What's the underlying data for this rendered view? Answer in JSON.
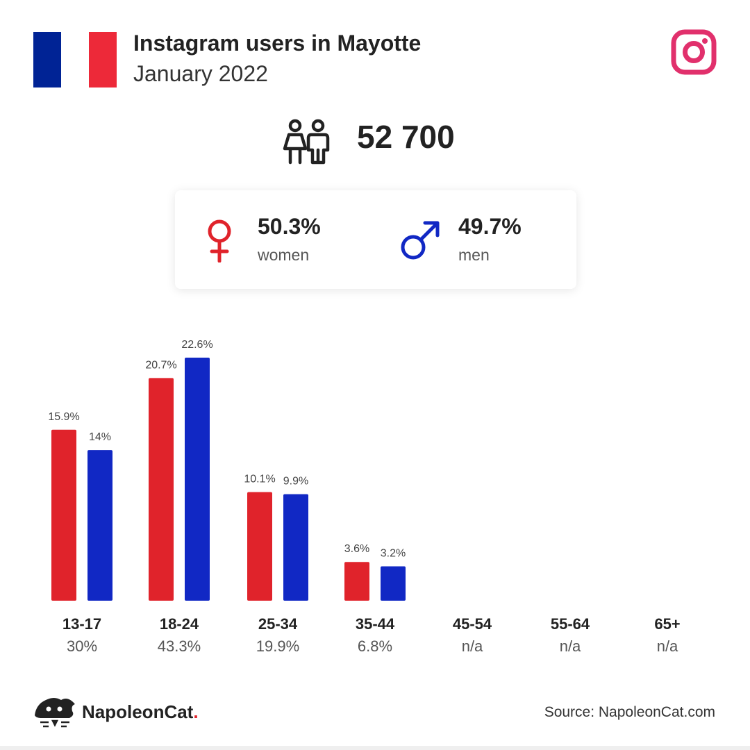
{
  "header": {
    "title": "Instagram users in Mayotte",
    "subtitle": "January 2022"
  },
  "flag_colors": [
    "#002395",
    "#ffffff",
    "#ed2939"
  ],
  "icons": {
    "flag": "france-flag-icon",
    "brand": "instagram-icon",
    "total": "people-icon",
    "women": "venus-icon",
    "men": "mars-icon",
    "footer_logo": "napoleoncat-logo-icon"
  },
  "total": {
    "value": "52 700"
  },
  "gender": {
    "women": {
      "pct": "50.3%",
      "label": "women",
      "color": "#e0232b"
    },
    "men": {
      "pct": "49.7%",
      "label": "men",
      "color": "#1128c4"
    }
  },
  "chart_data": {
    "type": "bar",
    "categories": [
      "13-17",
      "18-24",
      "25-34",
      "35-44",
      "45-54",
      "55-64",
      "65+"
    ],
    "category_totals": [
      "30%",
      "43.3%",
      "19.9%",
      "6.8%",
      "n/a",
      "n/a",
      "n/a"
    ],
    "series": [
      {
        "name": "women",
        "color": "#e0232b",
        "values": [
          15.9,
          20.7,
          10.1,
          3.6,
          null,
          null,
          null
        ],
        "labels": [
          "15.9%",
          "20.7%",
          "10.1%",
          "3.6%",
          "",
          "",
          ""
        ]
      },
      {
        "name": "men",
        "color": "#1128c4",
        "values": [
          14,
          22.6,
          9.9,
          3.2,
          null,
          null,
          null
        ],
        "labels": [
          "14%",
          "22.6%",
          "9.9%",
          "3.2%",
          "",
          "",
          ""
        ]
      }
    ],
    "ylim": [
      0,
      22.6
    ],
    "grid": false,
    "legend": "none"
  },
  "footer": {
    "brand_name": "NapoleonCat",
    "brand_dot": ".",
    "source": "Source: NapoleonCat.com"
  }
}
